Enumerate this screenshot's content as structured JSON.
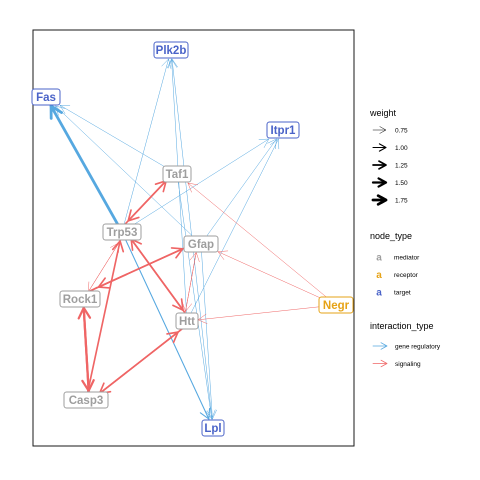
{
  "diagram": {
    "colors": {
      "mediator": "#9e9e9e",
      "receptor": "#e6a317",
      "target": "#4a63c8",
      "gene_regulatory": "#56a8e0",
      "signaling": "#ef6565"
    },
    "nodes": [
      {
        "id": "Plk2b",
        "label": "Plk2b",
        "type": "target"
      },
      {
        "id": "Fas",
        "label": "Fas",
        "type": "target"
      },
      {
        "id": "Itpr1",
        "label": "Itpr1",
        "type": "target"
      },
      {
        "id": "Taf1",
        "label": "Taf1",
        "type": "mediator"
      },
      {
        "id": "Trp53",
        "label": "Trp53",
        "type": "mediator"
      },
      {
        "id": "Gfap",
        "label": "Gfap",
        "type": "mediator"
      },
      {
        "id": "Rock1",
        "label": "Rock1",
        "type": "mediator"
      },
      {
        "id": "Negr",
        "label": "Negr",
        "type": "receptor"
      },
      {
        "id": "Htt",
        "label": "Htt",
        "type": "mediator"
      },
      {
        "id": "Casp3",
        "label": "Casp3",
        "type": "mediator"
      },
      {
        "id": "Lpl",
        "label": "Lpl",
        "type": "target"
      }
    ],
    "edges": [
      {
        "from": "Trp53",
        "to": "Fas",
        "kind": "gene_regulatory",
        "weight": 1.75
      },
      {
        "from": "Taf1",
        "to": "Fas",
        "kind": "gene_regulatory",
        "weight": 0.75
      },
      {
        "from": "Gfap",
        "to": "Fas",
        "kind": "gene_regulatory",
        "weight": 0.75
      },
      {
        "from": "Trp53",
        "to": "Plk2b",
        "kind": "gene_regulatory",
        "weight": 0.75
      },
      {
        "from": "Htt",
        "to": "Plk2b",
        "kind": "gene_regulatory",
        "weight": 0.75
      },
      {
        "from": "Lpl",
        "to": "Plk2b",
        "kind": "gene_regulatory",
        "weight": 0.75
      },
      {
        "from": "Trp53",
        "to": "Itpr1",
        "kind": "gene_regulatory",
        "weight": 0.75
      },
      {
        "from": "Gfap",
        "to": "Itpr1",
        "kind": "gene_regulatory",
        "weight": 0.75
      },
      {
        "from": "Htt",
        "to": "Itpr1",
        "kind": "gene_regulatory",
        "weight": 0.75
      },
      {
        "from": "Taf1",
        "to": "Lpl",
        "kind": "gene_regulatory",
        "weight": 0.75
      },
      {
        "from": "Trp53",
        "to": "Lpl",
        "kind": "gene_regulatory",
        "weight": 1.0
      },
      {
        "from": "Gfap",
        "to": "Lpl",
        "kind": "gene_regulatory",
        "weight": 0.75
      },
      {
        "from": "Trp53",
        "to": "Taf1",
        "kind": "signaling",
        "weight": 1.25
      },
      {
        "from": "Taf1",
        "to": "Trp53",
        "kind": "signaling",
        "weight": 1.25
      },
      {
        "from": "Trp53",
        "to": "Htt",
        "kind": "signaling",
        "weight": 1.25
      },
      {
        "from": "Htt",
        "to": "Trp53",
        "kind": "signaling",
        "weight": 1.25
      },
      {
        "from": "Rock1",
        "to": "Gfap",
        "kind": "signaling",
        "weight": 1.25
      },
      {
        "from": "Gfap",
        "to": "Rock1",
        "kind": "signaling",
        "weight": 1.25
      },
      {
        "from": "Rock1",
        "to": "Trp53",
        "kind": "signaling",
        "weight": 0.75
      },
      {
        "from": "Trp53",
        "to": "Rock1",
        "kind": "signaling",
        "weight": 0.75
      },
      {
        "from": "Rock1",
        "to": "Casp3",
        "kind": "signaling",
        "weight": 1.5
      },
      {
        "from": "Casp3",
        "to": "Rock1",
        "kind": "signaling",
        "weight": 1.5
      },
      {
        "from": "Casp3",
        "to": "Trp53",
        "kind": "signaling",
        "weight": 1.25
      },
      {
        "from": "Casp3",
        "to": "Htt",
        "kind": "signaling",
        "weight": 1.25
      },
      {
        "from": "Htt",
        "to": "Casp3",
        "kind": "signaling",
        "weight": 1.25
      },
      {
        "from": "Htt",
        "to": "Gfap",
        "kind": "signaling",
        "weight": 0.75
      },
      {
        "from": "Gfap",
        "to": "Htt",
        "kind": "signaling",
        "weight": 0.75
      },
      {
        "from": "Negr",
        "to": "Taf1",
        "kind": "signaling",
        "weight": 0.75
      },
      {
        "from": "Negr",
        "to": "Gfap",
        "kind": "signaling",
        "weight": 0.75
      },
      {
        "from": "Negr",
        "to": "Htt",
        "kind": "signaling",
        "weight": 0.75
      }
    ],
    "legend": {
      "weight": {
        "title": "weight",
        "items": [
          {
            "label": "0.75",
            "value": 0.75
          },
          {
            "label": "1.00",
            "value": 1.0
          },
          {
            "label": "1.25",
            "value": 1.25
          },
          {
            "label": "1.50",
            "value": 1.5
          },
          {
            "label": "1.75",
            "value": 1.75
          }
        ]
      },
      "node_type": {
        "title": "node_type",
        "key_glyph": "a",
        "items": [
          {
            "label": "mediator",
            "type": "mediator"
          },
          {
            "label": "receptor",
            "type": "receptor"
          },
          {
            "label": "target",
            "type": "target"
          }
        ]
      },
      "interaction_type": {
        "title": "interaction_type",
        "items": [
          {
            "label": "gene regulatory",
            "kind": "gene_regulatory"
          },
          {
            "label": "signaling",
            "kind": "signaling"
          }
        ]
      }
    }
  }
}
